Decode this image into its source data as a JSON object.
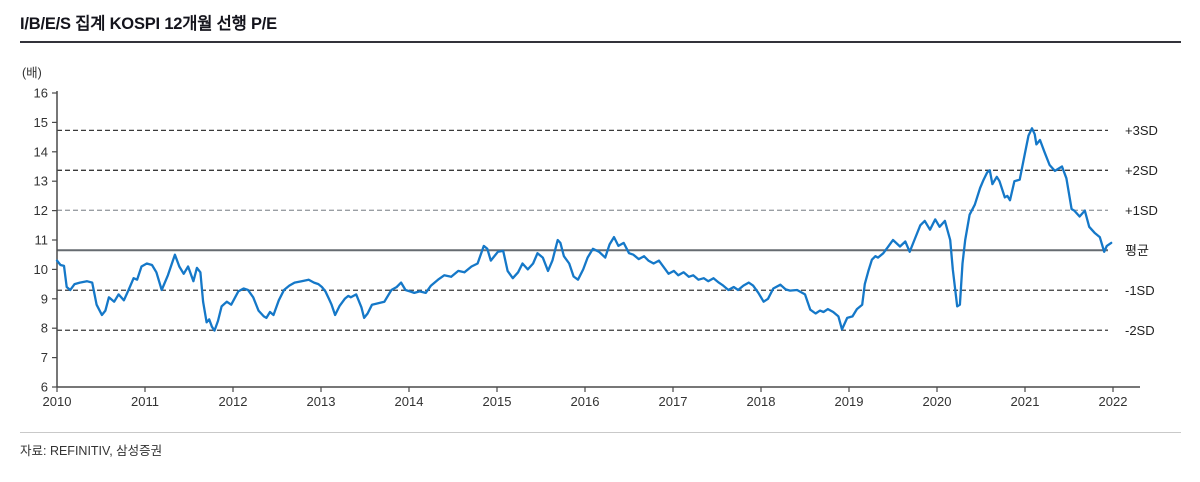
{
  "header": {
    "title": "I/B/E/S 집계 KOSPI 12개월 선행 P/E"
  },
  "footer": {
    "source": "자료: REFINITIV, 삼성증권"
  },
  "colors": {
    "line": "#1578c8",
    "axis": "#4a4a4a",
    "ref_dark": "#3a3a3a",
    "ref_light": "#9a9fa4",
    "mean_line": "#666b70",
    "tick_text": "#333333",
    "ref_label_text": "#222222"
  },
  "chart_data": {
    "type": "line",
    "title": "I/B/E/S 집계 KOSPI 12개월 선행 P/E",
    "unit_label": "(배)",
    "xlabel": "",
    "ylabel": "",
    "grid": false,
    "legend_position": "right-margin-labels",
    "y_axis": {
      "min": 6,
      "max": 16,
      "step": 1,
      "ticks": [
        16,
        15,
        14,
        13,
        12,
        11,
        10,
        9,
        8,
        7,
        6
      ]
    },
    "x_axis": {
      "start": 2010,
      "end": 2022,
      "ticks": [
        2010,
        2011,
        2012,
        2013,
        2014,
        2015,
        2016,
        2017,
        2018,
        2019,
        2020,
        2021,
        2022
      ]
    },
    "reference_lines": [
      {
        "label": "+3SD",
        "value": 14.73,
        "style": "dashed-dark"
      },
      {
        "label": "+2SD",
        "value": 13.37,
        "style": "dashed-dark"
      },
      {
        "label": "+1SD",
        "value": 12.01,
        "style": "dashed-light"
      },
      {
        "label": "평균",
        "value": 10.65,
        "style": "solid"
      },
      {
        "label": "-1SD",
        "value": 9.29,
        "style": "dashed-dark"
      },
      {
        "label": "-2SD",
        "value": 7.93,
        "style": "dashed-dark"
      }
    ],
    "series": [
      {
        "name": "KOSPI 12개월 선행 P/E",
        "color": "#1578c8",
        "points": [
          [
            2010.0,
            10.3
          ],
          [
            2010.04,
            10.15
          ],
          [
            2010.08,
            10.12
          ],
          [
            2010.11,
            9.4
          ],
          [
            2010.15,
            9.3
          ],
          [
            2010.2,
            9.5
          ],
          [
            2010.26,
            9.55
          ],
          [
            2010.34,
            9.6
          ],
          [
            2010.4,
            9.55
          ],
          [
            2010.45,
            8.8
          ],
          [
            2010.51,
            8.45
          ],
          [
            2010.55,
            8.6
          ],
          [
            2010.59,
            9.05
          ],
          [
            2010.65,
            8.9
          ],
          [
            2010.7,
            9.15
          ],
          [
            2010.76,
            8.95
          ],
          [
            2010.82,
            9.35
          ],
          [
            2010.87,
            9.7
          ],
          [
            2010.91,
            9.65
          ],
          [
            2010.96,
            10.1
          ],
          [
            2011.02,
            10.2
          ],
          [
            2011.08,
            10.15
          ],
          [
            2011.13,
            9.9
          ],
          [
            2011.19,
            9.3
          ],
          [
            2011.26,
            9.8
          ],
          [
            2011.34,
            10.5
          ],
          [
            2011.39,
            10.1
          ],
          [
            2011.44,
            9.85
          ],
          [
            2011.49,
            10.1
          ],
          [
            2011.55,
            9.6
          ],
          [
            2011.59,
            10.05
          ],
          [
            2011.63,
            9.9
          ],
          [
            2011.66,
            8.9
          ],
          [
            2011.7,
            8.2
          ],
          [
            2011.73,
            8.3
          ],
          [
            2011.76,
            8.05
          ],
          [
            2011.79,
            7.92
          ],
          [
            2011.83,
            8.25
          ],
          [
            2011.87,
            8.74
          ],
          [
            2011.93,
            8.9
          ],
          [
            2011.98,
            8.8
          ],
          [
            2012.06,
            9.25
          ],
          [
            2012.12,
            9.35
          ],
          [
            2012.17,
            9.3
          ],
          [
            2012.23,
            9.05
          ],
          [
            2012.29,
            8.6
          ],
          [
            2012.35,
            8.4
          ],
          [
            2012.38,
            8.35
          ],
          [
            2012.42,
            8.55
          ],
          [
            2012.46,
            8.45
          ],
          [
            2012.52,
            8.95
          ],
          [
            2012.58,
            9.3
          ],
          [
            2012.64,
            9.45
          ],
          [
            2012.7,
            9.55
          ],
          [
            2012.78,
            9.6
          ],
          [
            2012.86,
            9.65
          ],
          [
            2012.92,
            9.55
          ],
          [
            2012.97,
            9.5
          ],
          [
            2013.01,
            9.4
          ],
          [
            2013.05,
            9.25
          ],
          [
            2013.09,
            9.0
          ],
          [
            2013.12,
            8.8
          ],
          [
            2013.16,
            8.45
          ],
          [
            2013.21,
            8.75
          ],
          [
            2013.27,
            9.0
          ],
          [
            2013.31,
            9.1
          ],
          [
            2013.34,
            9.05
          ],
          [
            2013.4,
            9.15
          ],
          [
            2013.46,
            8.7
          ],
          [
            2013.49,
            8.35
          ],
          [
            2013.53,
            8.5
          ],
          [
            2013.58,
            8.8
          ],
          [
            2013.65,
            8.85
          ],
          [
            2013.72,
            8.9
          ],
          [
            2013.8,
            9.3
          ],
          [
            2013.86,
            9.4
          ],
          [
            2013.91,
            9.55
          ],
          [
            2013.96,
            9.3
          ],
          [
            2014.01,
            9.25
          ],
          [
            2014.06,
            9.2
          ],
          [
            2014.12,
            9.25
          ],
          [
            2014.19,
            9.2
          ],
          [
            2014.25,
            9.45
          ],
          [
            2014.33,
            9.65
          ],
          [
            2014.4,
            9.8
          ],
          [
            2014.48,
            9.75
          ],
          [
            2014.56,
            9.95
          ],
          [
            2014.63,
            9.9
          ],
          [
            2014.71,
            10.1
          ],
          [
            2014.78,
            10.2
          ],
          [
            2014.85,
            10.8
          ],
          [
            2014.89,
            10.7
          ],
          [
            2014.93,
            10.3
          ],
          [
            2015.01,
            10.6
          ],
          [
            2015.07,
            10.63
          ],
          [
            2015.12,
            9.95
          ],
          [
            2015.18,
            9.7
          ],
          [
            2015.24,
            9.9
          ],
          [
            2015.29,
            10.2
          ],
          [
            2015.35,
            10.0
          ],
          [
            2015.41,
            10.2
          ],
          [
            2015.46,
            10.55
          ],
          [
            2015.52,
            10.4
          ],
          [
            2015.58,
            9.95
          ],
          [
            2015.63,
            10.3
          ],
          [
            2015.69,
            11.0
          ],
          [
            2015.72,
            10.9
          ],
          [
            2015.76,
            10.45
          ],
          [
            2015.82,
            10.2
          ],
          [
            2015.87,
            9.76
          ],
          [
            2015.92,
            9.65
          ],
          [
            2015.98,
            10.0
          ],
          [
            2016.03,
            10.4
          ],
          [
            2016.09,
            10.7
          ],
          [
            2016.16,
            10.6
          ],
          [
            2016.23,
            10.4
          ],
          [
            2016.28,
            10.85
          ],
          [
            2016.33,
            11.1
          ],
          [
            2016.38,
            10.8
          ],
          [
            2016.44,
            10.9
          ],
          [
            2016.5,
            10.55
          ],
          [
            2016.55,
            10.5
          ],
          [
            2016.61,
            10.35
          ],
          [
            2016.67,
            10.45
          ],
          [
            2016.72,
            10.3
          ],
          [
            2016.78,
            10.2
          ],
          [
            2016.84,
            10.3
          ],
          [
            2016.89,
            10.1
          ],
          [
            2016.95,
            9.85
          ],
          [
            2017.01,
            9.95
          ],
          [
            2017.06,
            9.8
          ],
          [
            2017.12,
            9.9
          ],
          [
            2017.18,
            9.75
          ],
          [
            2017.23,
            9.8
          ],
          [
            2017.29,
            9.65
          ],
          [
            2017.35,
            9.7
          ],
          [
            2017.4,
            9.6
          ],
          [
            2017.46,
            9.7
          ],
          [
            2017.52,
            9.55
          ],
          [
            2017.57,
            9.45
          ],
          [
            2017.63,
            9.3
          ],
          [
            2017.69,
            9.4
          ],
          [
            2017.74,
            9.3
          ],
          [
            2017.8,
            9.45
          ],
          [
            2017.86,
            9.55
          ],
          [
            2017.91,
            9.45
          ],
          [
            2017.97,
            9.2
          ],
          [
            2018.03,
            8.9
          ],
          [
            2018.08,
            9.0
          ],
          [
            2018.14,
            9.35
          ],
          [
            2018.22,
            9.48
          ],
          [
            2018.28,
            9.32
          ],
          [
            2018.33,
            9.28
          ],
          [
            2018.41,
            9.3
          ],
          [
            2018.5,
            9.15
          ],
          [
            2018.56,
            8.63
          ],
          [
            2018.62,
            8.5
          ],
          [
            2018.67,
            8.6
          ],
          [
            2018.71,
            8.55
          ],
          [
            2018.76,
            8.65
          ],
          [
            2018.82,
            8.55
          ],
          [
            2018.88,
            8.4
          ],
          [
            2018.92,
            7.96
          ],
          [
            2018.98,
            8.35
          ],
          [
            2019.04,
            8.4
          ],
          [
            2019.09,
            8.65
          ],
          [
            2019.15,
            8.8
          ],
          [
            2019.18,
            9.5
          ],
          [
            2019.22,
            9.95
          ],
          [
            2019.26,
            10.33
          ],
          [
            2019.3,
            10.45
          ],
          [
            2019.33,
            10.4
          ],
          [
            2019.39,
            10.55
          ],
          [
            2019.44,
            10.75
          ],
          [
            2019.5,
            11.0
          ],
          [
            2019.58,
            10.78
          ],
          [
            2019.64,
            10.95
          ],
          [
            2019.69,
            10.6
          ],
          [
            2019.75,
            11.05
          ],
          [
            2019.81,
            11.5
          ],
          [
            2019.86,
            11.65
          ],
          [
            2019.92,
            11.35
          ],
          [
            2019.98,
            11.7
          ],
          [
            2020.03,
            11.45
          ],
          [
            2020.09,
            11.65
          ],
          [
            2020.15,
            11.0
          ],
          [
            2020.18,
            10.0
          ],
          [
            2020.23,
            8.74
          ],
          [
            2020.26,
            8.8
          ],
          [
            2020.29,
            10.2
          ],
          [
            2020.32,
            11.0
          ],
          [
            2020.37,
            11.86
          ],
          [
            2020.43,
            12.2
          ],
          [
            2020.49,
            12.77
          ],
          [
            2020.53,
            13.05
          ],
          [
            2020.57,
            13.3
          ],
          [
            2020.6,
            13.37
          ],
          [
            2020.63,
            12.9
          ],
          [
            2020.68,
            13.15
          ],
          [
            2020.71,
            13.0
          ],
          [
            2020.77,
            12.45
          ],
          [
            2020.8,
            12.5
          ],
          [
            2020.83,
            12.35
          ],
          [
            2020.88,
            13.0
          ],
          [
            2020.94,
            13.05
          ],
          [
            2021.0,
            13.96
          ],
          [
            2021.04,
            14.55
          ],
          [
            2021.08,
            14.8
          ],
          [
            2021.11,
            14.6
          ],
          [
            2021.13,
            14.25
          ],
          [
            2021.17,
            14.4
          ],
          [
            2021.22,
            14.0
          ],
          [
            2021.28,
            13.55
          ],
          [
            2021.34,
            13.35
          ],
          [
            2021.42,
            13.5
          ],
          [
            2021.47,
            13.1
          ],
          [
            2021.53,
            12.05
          ],
          [
            2021.56,
            12.0
          ],
          [
            2021.62,
            11.8
          ],
          [
            2021.68,
            12.0
          ],
          [
            2021.73,
            11.45
          ],
          [
            2021.79,
            11.25
          ],
          [
            2021.85,
            11.1
          ],
          [
            2021.9,
            10.6
          ],
          [
            2021.93,
            10.8
          ],
          [
            2021.98,
            10.9
          ]
        ]
      }
    ]
  }
}
